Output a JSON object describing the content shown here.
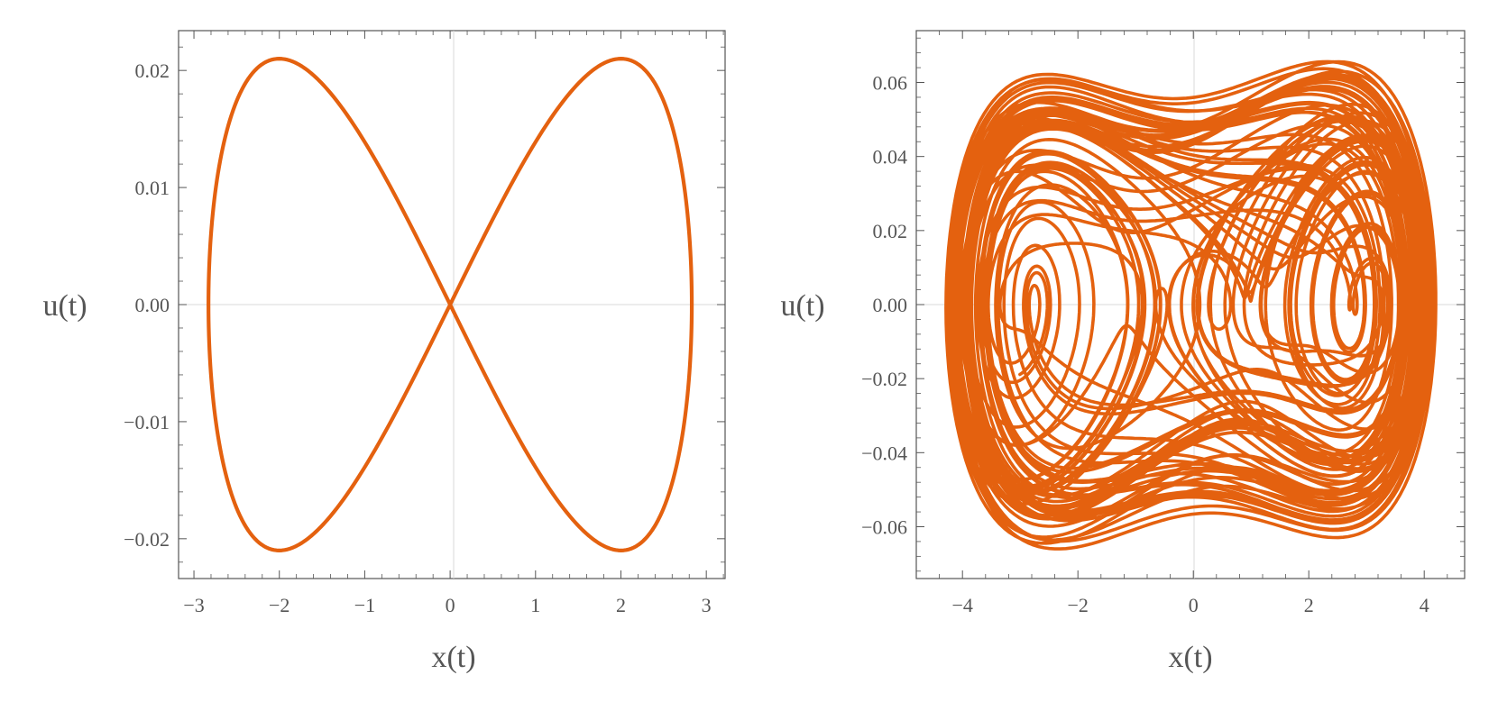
{
  "chart_data": [
    {
      "type": "line",
      "title": "",
      "xlabel": "x(t)",
      "ylabel": "u(t)",
      "xlim": [
        -3.18,
        3.22
      ],
      "ylim": [
        -0.0234,
        0.0234
      ],
      "xticks": [
        -3,
        -2,
        -1,
        0,
        1,
        2,
        3
      ],
      "xtick_labels": [
        "−3",
        "−2",
        "−1",
        "0",
        "1",
        "2",
        "3"
      ],
      "yticks": [
        -0.02,
        -0.01,
        0,
        0.01,
        0.02
      ],
      "ytick_labels": [
        "−0.02",
        "−0.01",
        "0.00",
        "0.01",
        "0.02"
      ],
      "grid": "zero lines only",
      "series": [
        {
          "kind": "figure-eight closed orbit",
          "x_amplitude": 2.83,
          "u_extrema": [
            -0.021,
            0.021
          ],
          "u_extrema_at_x": [
            -2.02,
            2.02
          ],
          "passes_through": [
            0,
            0
          ],
          "color": "#E4610F"
        }
      ]
    },
    {
      "type": "line",
      "title": "",
      "xlabel": "x(t)",
      "ylabel": "u(t)",
      "xlim": [
        -4.8,
        4.7
      ],
      "ylim": [
        -0.074,
        0.074
      ],
      "xticks": [
        -4,
        -2,
        0,
        2,
        4
      ],
      "xtick_labels": [
        "−4",
        "−2",
        "0",
        "2",
        "4"
      ],
      "yticks": [
        -0.06,
        -0.04,
        -0.02,
        0,
        0.02,
        0.04,
        0.06
      ],
      "ytick_labels": [
        "−0.06",
        "−0.04",
        "−0.02",
        "0.00",
        "0.02",
        "0.04",
        "0.06"
      ],
      "grid": "zero lines only",
      "series": [
        {
          "kind": "chaotic trajectory",
          "x_range": [
            -4.3,
            4.2
          ],
          "u_range": [
            -0.066,
            0.066
          ],
          "color": "#E4610F"
        }
      ]
    }
  ]
}
